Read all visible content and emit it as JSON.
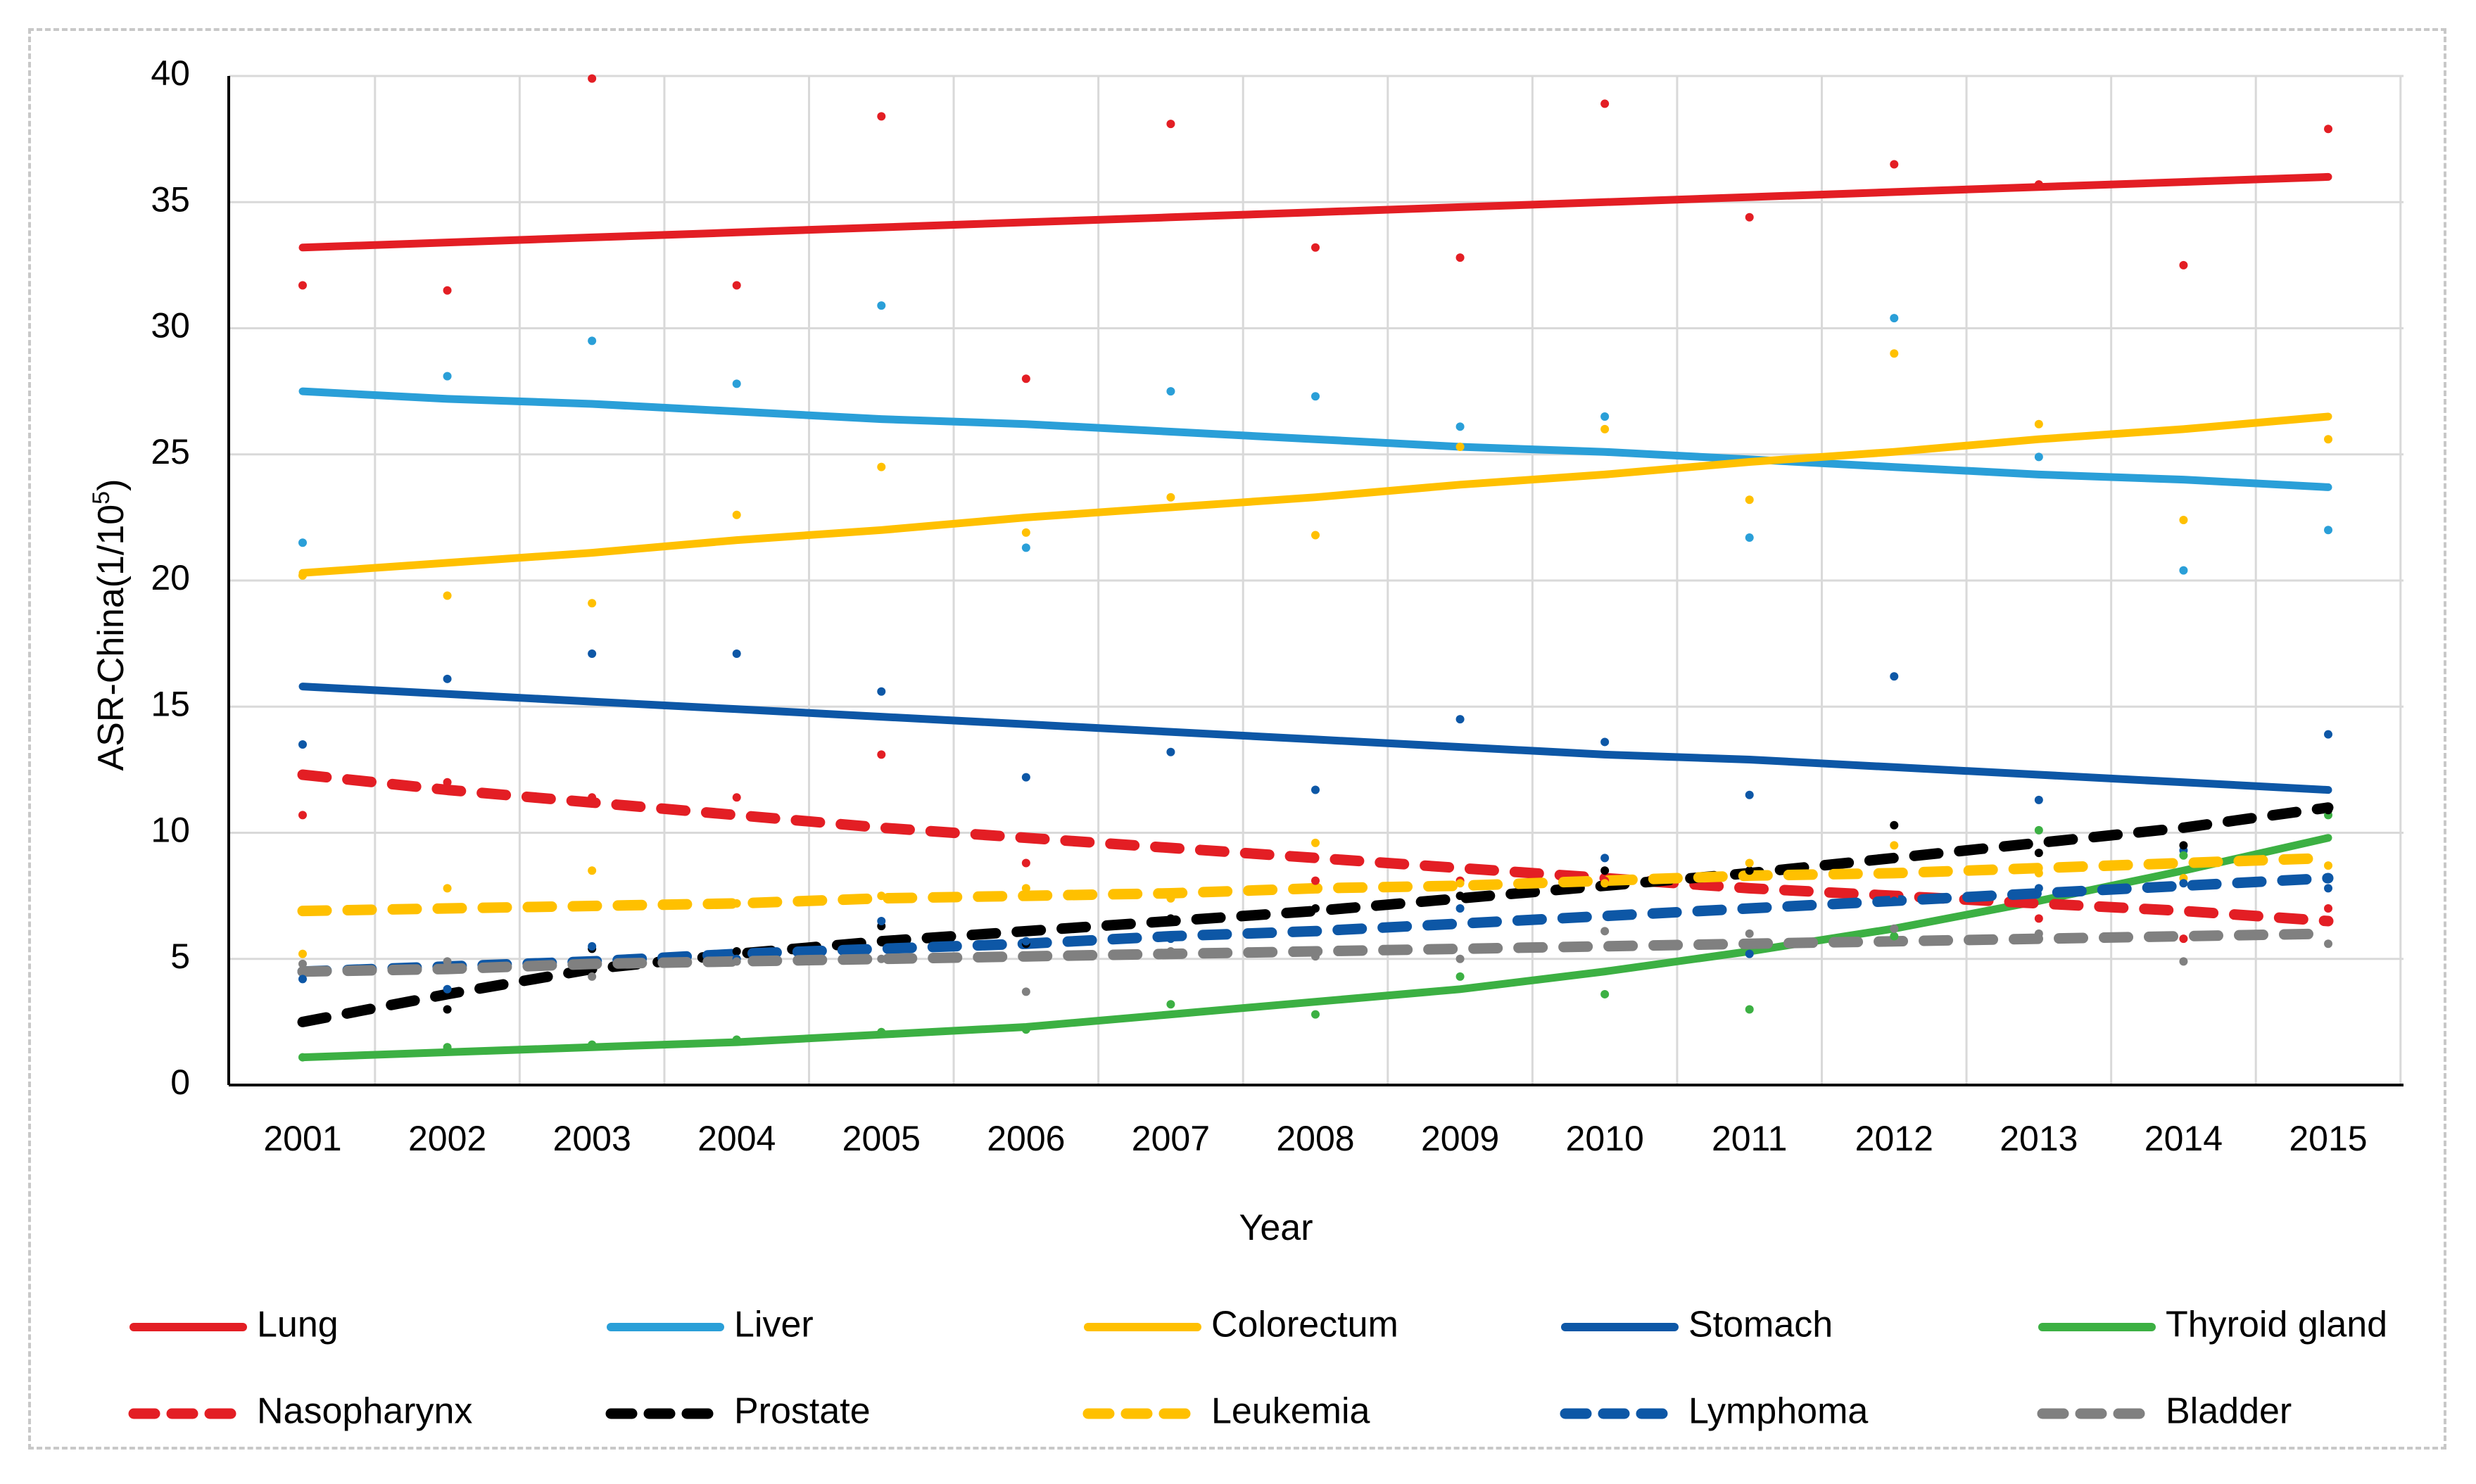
{
  "chart_data": {
    "type": "scatter",
    "xlabel": "Year",
    "ylabel_base": "ASR-China(1/10",
    "ylabel_sup": "5",
    "ylabel_end": ")",
    "xlim": [
      2001,
      2015
    ],
    "ylim": [
      0,
      40
    ],
    "y_ticks": [
      0,
      5,
      10,
      15,
      20,
      25,
      30,
      35,
      40
    ],
    "x_categories": [
      "2001",
      "2002",
      "2003",
      "2004",
      "2005",
      "2006",
      "2007",
      "2008",
      "2009",
      "2010",
      "2011",
      "2012",
      "2013",
      "2014",
      "2015"
    ],
    "grid": true,
    "legend_position": "bottom",
    "series": [
      {
        "name": "Lung",
        "color": "#e31e24",
        "dash": false,
        "points": [
          31.7,
          31.5,
          39.9,
          31.7,
          38.4,
          28.0,
          38.1,
          33.2,
          32.8,
          38.9,
          34.4,
          36.5,
          35.7,
          32.5,
          37.9
        ],
        "trend": [
          33.2,
          33.4,
          33.6,
          33.8,
          34.0,
          34.2,
          34.4,
          34.6,
          34.8,
          35.0,
          35.2,
          35.4,
          35.6,
          35.8,
          36.0
        ]
      },
      {
        "name": "Liver",
        "color": "#2a9fd8",
        "dash": false,
        "points": [
          21.5,
          28.1,
          29.5,
          27.8,
          30.9,
          21.3,
          27.5,
          27.3,
          26.1,
          26.5,
          21.7,
          30.4,
          24.9,
          20.4,
          22.0
        ],
        "trend": [
          27.5,
          27.2,
          27.0,
          26.7,
          26.4,
          26.2,
          25.9,
          25.6,
          25.3,
          25.1,
          24.8,
          24.5,
          24.2,
          24.0,
          23.7
        ]
      },
      {
        "name": "Colorectum",
        "color": "#ffc000",
        "dash": false,
        "points": [
          20.2,
          19.4,
          19.1,
          22.6,
          24.5,
          21.9,
          23.3,
          21.8,
          25.3,
          26.0,
          23.2,
          29.0,
          26.2,
          22.4,
          25.6
        ],
        "trend": [
          20.3,
          20.7,
          21.1,
          21.6,
          22.0,
          22.5,
          22.9,
          23.3,
          23.8,
          24.2,
          24.7,
          25.1,
          25.6,
          26.0,
          26.5
        ]
      },
      {
        "name": "Stomach",
        "color": "#0d57a6",
        "dash": false,
        "points": [
          13.5,
          16.1,
          17.1,
          17.1,
          15.6,
          12.2,
          13.2,
          11.7,
          14.5,
          13.6,
          11.5,
          16.2,
          11.3,
          9.3,
          13.9
        ],
        "trend": [
          15.8,
          15.5,
          15.2,
          14.9,
          14.6,
          14.3,
          14.0,
          13.7,
          13.4,
          13.1,
          12.9,
          12.6,
          12.3,
          12.0,
          11.7
        ]
      },
      {
        "name": "Thyroid gland",
        "color": "#3cb043",
        "dash": false,
        "points": [
          1.1,
          1.5,
          1.6,
          1.8,
          2.1,
          2.2,
          3.2,
          2.8,
          4.3,
          3.6,
          3.0,
          5.9,
          10.1,
          9.1,
          10.7
        ],
        "trend": [
          1.1,
          1.3,
          1.5,
          1.7,
          2.0,
          2.3,
          2.8,
          3.3,
          3.8,
          4.5,
          5.3,
          6.2,
          7.3,
          8.5,
          9.8
        ]
      },
      {
        "name": "Nasopharynx",
        "color": "#e31e24",
        "dash": true,
        "points": [
          10.7,
          12.0,
          11.4,
          11.4,
          13.1,
          8.8,
          9.4,
          8.1,
          8.1,
          8.1,
          7.8,
          7.5,
          6.6,
          5.8,
          7.0
        ],
        "trend": [
          12.3,
          11.7,
          11.2,
          10.7,
          10.2,
          9.8,
          9.4,
          9.0,
          8.6,
          8.2,
          7.8,
          7.5,
          7.2,
          6.9,
          6.5
        ]
      },
      {
        "name": "Prostate",
        "color": "#000000",
        "dash": true,
        "points": [
          2.5,
          3.0,
          5.4,
          5.3,
          6.3,
          5.6,
          6.6,
          7.0,
          7.5,
          8.5,
          8.5,
          10.3,
          9.2,
          9.5,
          10.9
        ],
        "trend": [
          2.5,
          3.6,
          4.6,
          5.2,
          5.7,
          6.1,
          6.5,
          6.9,
          7.4,
          7.9,
          8.4,
          9.0,
          9.6,
          10.2,
          11.0
        ]
      },
      {
        "name": "Leukemia",
        "color": "#ffc000",
        "dash": true,
        "points": [
          5.2,
          7.8,
          8.5,
          7.2,
          7.5,
          7.8,
          7.4,
          9.6,
          8.0,
          8.0,
          8.8,
          9.5,
          8.4,
          8.2,
          8.7
        ],
        "trend": [
          6.9,
          7.0,
          7.1,
          7.2,
          7.4,
          7.5,
          7.6,
          7.8,
          7.9,
          8.1,
          8.3,
          8.4,
          8.6,
          8.8,
          9.0
        ]
      },
      {
        "name": "Lymphoma",
        "color": "#0d57a6",
        "dash": true,
        "points": [
          4.2,
          3.8,
          5.5,
          5.0,
          6.5,
          5.7,
          5.8,
          6.1,
          7.0,
          9.0,
          5.2,
          7.3,
          7.8,
          8.0,
          7.8
        ],
        "trend": [
          4.5,
          4.7,
          4.9,
          5.2,
          5.4,
          5.6,
          5.9,
          6.1,
          6.4,
          6.7,
          7.0,
          7.3,
          7.6,
          7.9,
          8.2
        ]
      },
      {
        "name": "Bladder",
        "color": "#808080",
        "dash": true,
        "points": [
          4.8,
          4.9,
          4.3,
          4.9,
          5.0,
          3.7,
          5.3,
          5.1,
          5.0,
          6.1,
          6.0,
          6.2,
          6.0,
          4.9,
          5.6
        ],
        "trend": [
          4.5,
          4.6,
          4.8,
          4.9,
          5.0,
          5.1,
          5.2,
          5.3,
          5.4,
          5.5,
          5.6,
          5.7,
          5.8,
          5.9,
          6.0
        ]
      }
    ]
  }
}
